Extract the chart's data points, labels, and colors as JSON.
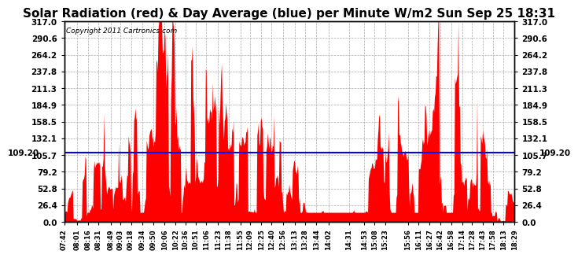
{
  "title": "Solar Radiation (red) & Day Average (blue) per Minute W/m2 Sun Sep 25 18:31",
  "copyright": "Copyright 2011 Cartronics.com",
  "y_max": 317.0,
  "y_min": 0.0,
  "y_ticks": [
    0.0,
    26.4,
    52.8,
    79.2,
    105.7,
    132.1,
    158.5,
    184.9,
    211.3,
    237.8,
    264.2,
    290.6,
    317.0
  ],
  "day_average": 109.2,
  "avg_label": "109.20",
  "fill_color": "#ff0000",
  "line_color": "#0000ff",
  "background_color": "#ffffff",
  "grid_color": "#aaaaaa",
  "title_fontsize": 11,
  "copyright_fontsize": 6.5,
  "tick_fontsize": 7.5,
  "x_tick_fontsize": 6,
  "seed": 99
}
